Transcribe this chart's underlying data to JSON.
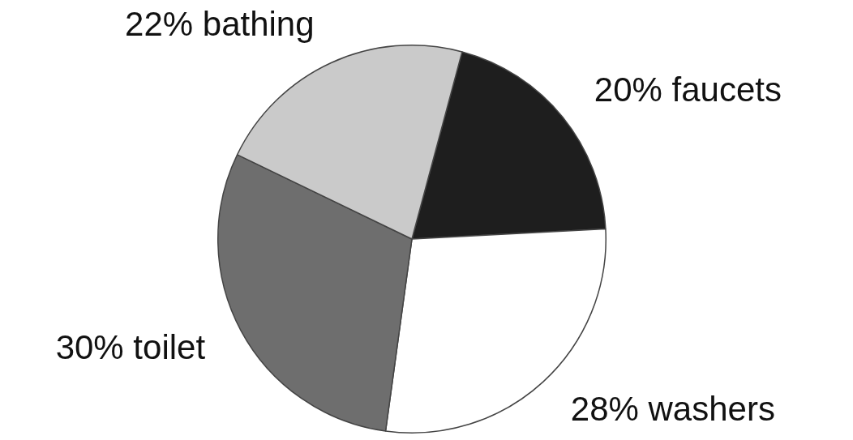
{
  "chart_data": {
    "type": "pie",
    "categories": [
      "faucets",
      "washers",
      "toilet",
      "bathing"
    ],
    "values": [
      20,
      28,
      30,
      22
    ],
    "value_labels": [
      "20%",
      "28%",
      "30%",
      "22%"
    ],
    "colors": [
      "#1e1e1e",
      "#ffffff",
      "#6e6e6e",
      "#cacaca"
    ],
    "legend": false
  }
}
